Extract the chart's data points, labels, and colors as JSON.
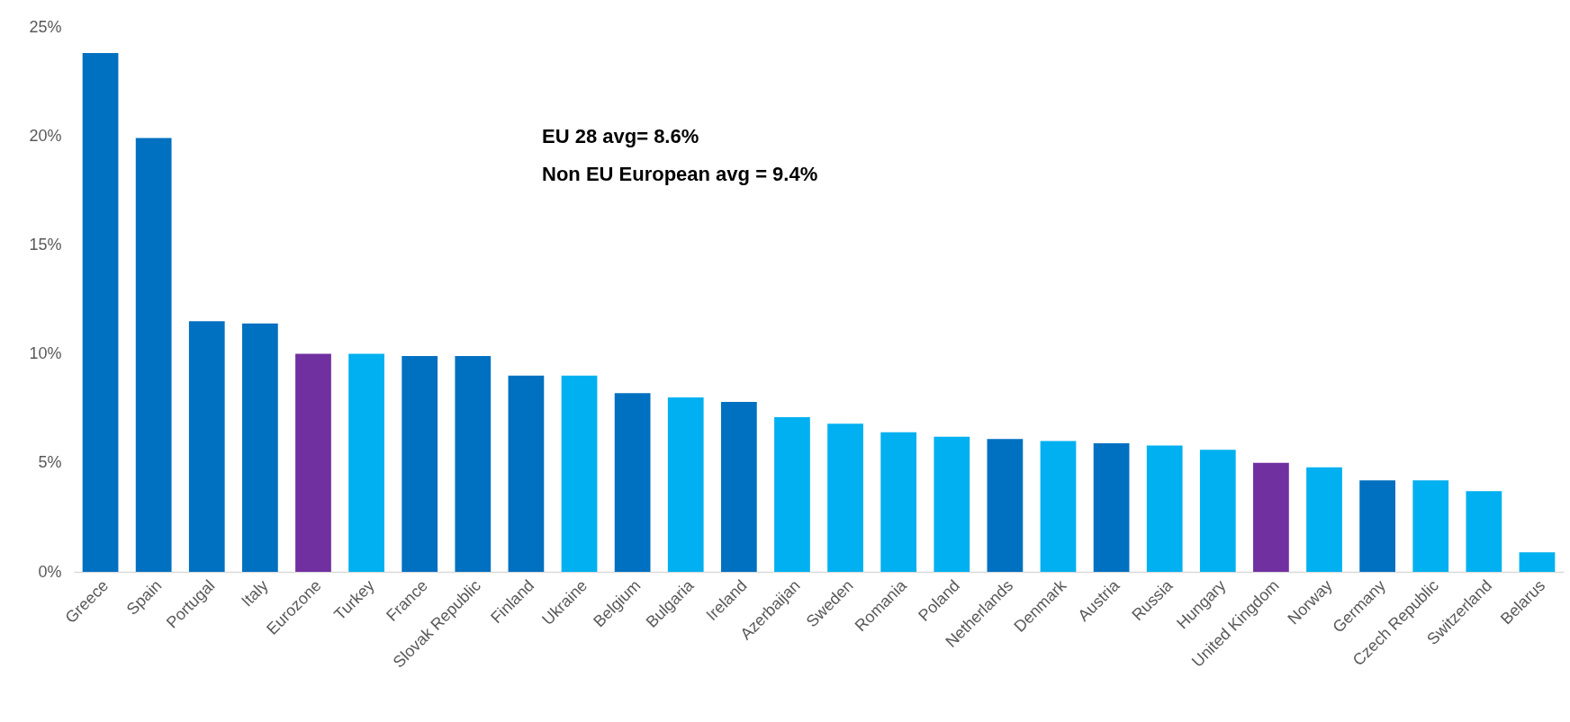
{
  "chart_data": {
    "type": "bar",
    "categories": [
      "Greece",
      "Spain",
      "Portugal",
      "Italy",
      "Eurozone",
      "Turkey",
      "France",
      "Slovak Republic",
      "Finland",
      "Ukraine",
      "Belgium",
      "Bulgaria",
      "Ireland",
      "Azerbaijan",
      "Sweden",
      "Romania",
      "Poland",
      "Netherlands",
      "Denmark",
      "Austria",
      "Russia",
      "Hungary",
      "United Kingdom",
      "Norway",
      "Germany",
      "Czech Republic",
      "Switzerland",
      "Belarus"
    ],
    "values": [
      23.8,
      19.9,
      11.5,
      11.4,
      10.0,
      10.0,
      9.9,
      9.9,
      9.0,
      9.0,
      8.2,
      8.0,
      7.8,
      7.1,
      6.8,
      6.4,
      6.2,
      6.1,
      6.0,
      5.9,
      5.8,
      5.6,
      5.0,
      4.8,
      4.2,
      4.2,
      3.7,
      0.9
    ],
    "colors": [
      "#0070c0",
      "#0070c0",
      "#0070c0",
      "#0070c0",
      "#7030a0",
      "#00b0f0",
      "#0070c0",
      "#0070c0",
      "#0070c0",
      "#00b0f0",
      "#0070c0",
      "#00b0f0",
      "#0070c0",
      "#00b0f0",
      "#00b0f0",
      "#00b0f0",
      "#00b0f0",
      "#0070c0",
      "#00b0f0",
      "#0070c0",
      "#00b0f0",
      "#00b0f0",
      "#7030a0",
      "#00b0f0",
      "#0070c0",
      "#00b0f0",
      "#00b0f0",
      "#00b0f0"
    ],
    "ylim": [
      0,
      25
    ],
    "yticks": [
      {
        "value": 0,
        "label": "0%"
      },
      {
        "value": 5,
        "label": "5%"
      },
      {
        "value": 10,
        "label": "10%"
      },
      {
        "value": 15,
        "label": "15%"
      },
      {
        "value": 20,
        "label": "20%"
      },
      {
        "value": 25,
        "label": "25%"
      }
    ],
    "grid": false,
    "annotations": [
      "EU 28 avg= 8.6%",
      "Non EU European avg = 9.4%"
    ]
  }
}
